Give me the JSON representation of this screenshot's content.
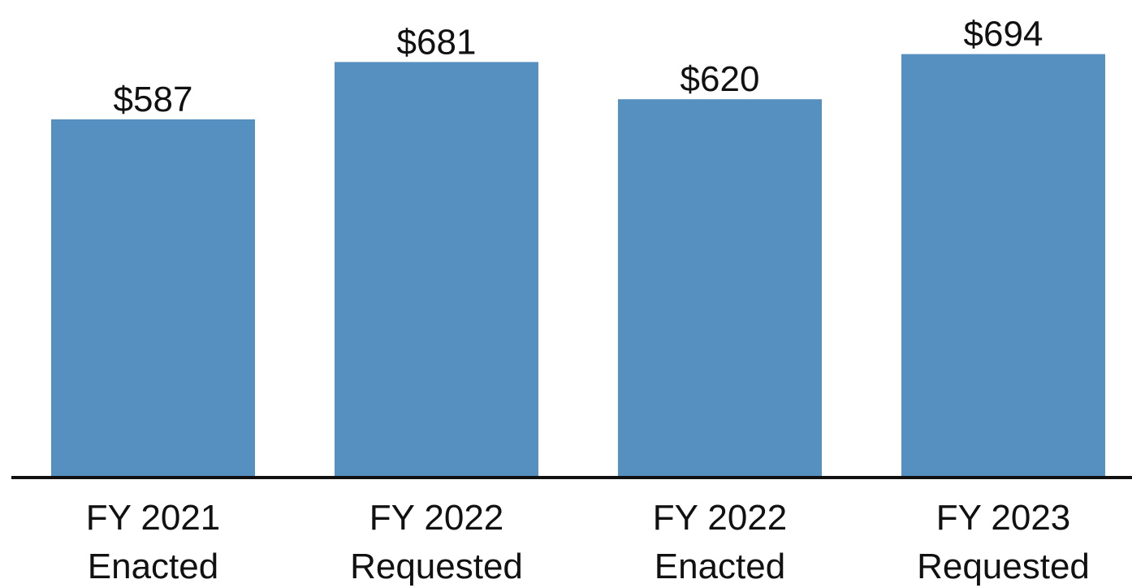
{
  "chart_data": {
    "type": "bar",
    "categories": [
      "FY 2021\nEnacted",
      "FY 2022\nRequested",
      "FY 2022\nEnacted",
      "FY 2023\nRequested"
    ],
    "values": [
      587,
      681,
      620,
      694
    ],
    "value_labels": [
      "$587",
      "$681",
      "$620",
      "$694"
    ],
    "color": "#5590c0"
  }
}
